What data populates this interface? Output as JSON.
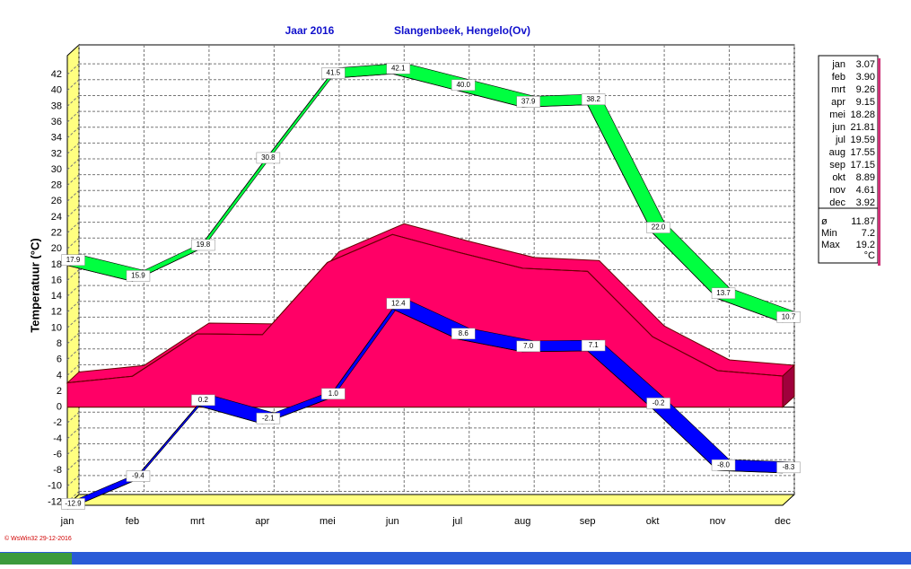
{
  "chart_data": {
    "type": "line3d",
    "title": "Jaar  2016",
    "subtitle": "Slangenbeek, Hengelo(Ov)",
    "y_label": "Temperatuur  (°C)",
    "footer": "© WsWin32  29-12-2016",
    "categories": [
      "jan",
      "feb",
      "mrt",
      "apr",
      "mei",
      "jun",
      "jul",
      "aug",
      "sep",
      "okt",
      "nov",
      "dec"
    ],
    "series": [
      {
        "color": "#00ff40",
        "kind": "ribbon",
        "values": [
          17.9,
          15.9,
          19.8,
          30.8,
          41.5,
          42.1,
          40.0,
          37.9,
          38.2,
          22.0,
          13.7,
          10.7
        ],
        "value_labels": [
          "17.9",
          "15.9",
          "19.8",
          "30.8",
          "41.5",
          "42.1",
          "40.0",
          "37.9",
          "38.2",
          "22.0",
          "13.7",
          "10.7"
        ]
      },
      {
        "color": "#0000ff",
        "kind": "ribbon",
        "values": [
          -12.9,
          -9.4,
          0.2,
          -2.1,
          1.0,
          12.4,
          8.6,
          7.0,
          7.1,
          -0.2,
          -8.0,
          -8.3
        ],
        "value_labels": [
          "-12.9",
          "-9.4",
          "0.2",
          "-2.1",
          "1.0",
          "12.4",
          "8.6",
          "7.0",
          "7.1",
          "-0.2",
          "-8.0",
          "-8.3"
        ]
      },
      {
        "color": "#ff0066",
        "kind": "area",
        "values": [
          3.07,
          3.9,
          9.26,
          9.15,
          18.28,
          21.81,
          19.59,
          17.55,
          17.15,
          8.89,
          4.61,
          3.92
        ],
        "value_labels": [
          "3.07",
          "3.90",
          "9.26",
          "9.15",
          "18.28",
          "21.81",
          "19.59",
          "17.55",
          "17.15",
          "8.89",
          "4.61",
          "3.92"
        ]
      }
    ],
    "stats": [
      {
        "label": "ø",
        "value": 11.87
      },
      {
        "label": "Min",
        "value": 7.2
      },
      {
        "label": "Max",
        "value": 19.2
      }
    ],
    "unit": "°C",
    "ylim": [
      -12.4,
      44.4
    ],
    "yticks": [
      -12,
      -10,
      -8,
      -6,
      -4,
      -2,
      0,
      2,
      4,
      6,
      8,
      10,
      12,
      14,
      16,
      18,
      20,
      22,
      24,
      26,
      28,
      30,
      32,
      34,
      36,
      38,
      40,
      42
    ],
    "grid": true
  }
}
